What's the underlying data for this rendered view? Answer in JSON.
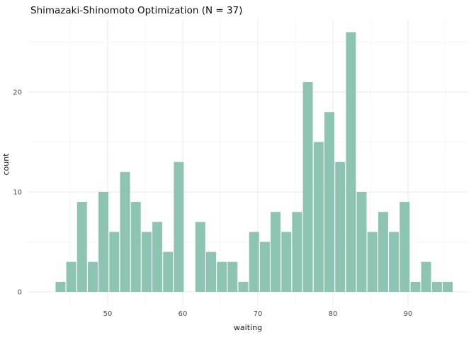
{
  "chart_data": {
    "type": "bar",
    "subtype": "histogram",
    "title": "Shimazaki-Shinomoto Optimization (N = 37)",
    "xlabel": "waiting",
    "ylabel": "count",
    "n_bins": 37,
    "bin_start": 43,
    "bin_width": 1.4324,
    "counts": [
      1,
      3,
      9,
      3,
      10,
      6,
      12,
      9,
      6,
      7,
      4,
      13,
      0,
      7,
      4,
      3,
      3,
      1,
      6,
      5,
      8,
      6,
      8,
      21,
      15,
      18,
      13,
      26,
      10,
      6,
      8,
      6,
      9,
      1,
      3,
      1,
      1
    ],
    "total_observations": 272,
    "x_ticks": [
      50,
      60,
      70,
      80,
      90
    ],
    "x_minor_ticks": [
      45,
      55,
      65,
      75,
      85,
      95
    ],
    "y_ticks": [
      0,
      10,
      20
    ],
    "y_minor_ticks": [
      5,
      15,
      25
    ],
    "xlim": [
      39.6,
      99.9
    ],
    "ylim": [
      -1.4,
      28.4
    ],
    "grid": true,
    "legend_position": "none",
    "colors": {
      "bar_fill": "#8dc4b2",
      "grid_major": "#e9e9e9",
      "grid_minor": "#f3f3f3",
      "axis_text": "#4d4d4d",
      "title_text": "#111111",
      "background": "#ffffff"
    }
  }
}
